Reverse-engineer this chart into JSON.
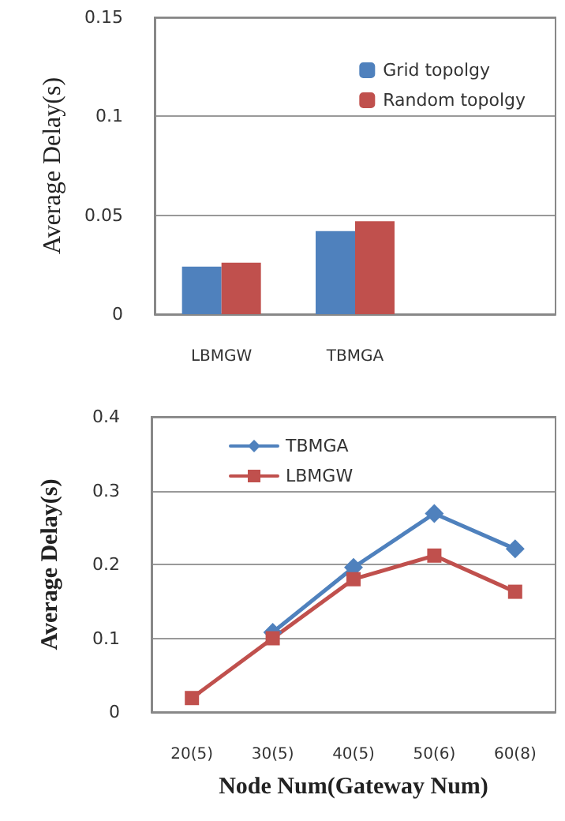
{
  "chart_data": [
    {
      "type": "bar",
      "ylabel": "Average Delay(s)",
      "categories": [
        "LBMGW",
        "TBMGA",
        null
      ],
      "series": [
        {
          "name": "Grid topolgy",
          "color": "#4f81bd",
          "values": [
            0.024,
            0.042,
            null
          ]
        },
        {
          "name": "Random topolgy",
          "color": "#c0504d",
          "values": [
            0.026,
            0.047,
            null
          ]
        }
      ],
      "ylim": [
        0,
        0.15
      ],
      "yticks": [
        0,
        0.05,
        0.1,
        0.15
      ],
      "grid": "y",
      "legend": "top right"
    },
    {
      "type": "line",
      "xlabel": "Node Num(Gateway Num)",
      "ylabel": "Average Delay(s)",
      "categories": [
        "20(5)",
        "30(5)",
        "40(5)",
        "50(6)",
        "60(8)"
      ],
      "series": [
        {
          "name": "TBMGA",
          "color": "#4f81bd",
          "marker": "diamond",
          "values": [
            null,
            0.108,
            0.196,
            0.269,
            0.221
          ]
        },
        {
          "name": "LBMGW",
          "color": "#c0504d",
          "marker": "square",
          "values": [
            0.019,
            0.1,
            0.18,
            0.212,
            0.163
          ]
        }
      ],
      "ylim": [
        0,
        0.4
      ],
      "yticks": [
        0,
        0.1,
        0.2,
        0.3,
        0.4
      ],
      "grid": "y",
      "legend": "top left"
    }
  ]
}
